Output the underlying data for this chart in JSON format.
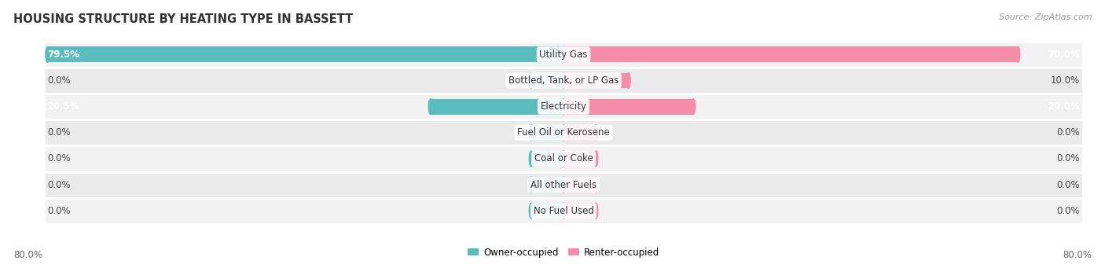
{
  "title": "HOUSING STRUCTURE BY HEATING TYPE IN BASSETT",
  "source": "Source: ZipAtlas.com",
  "categories": [
    "Utility Gas",
    "Bottled, Tank, or LP Gas",
    "Electricity",
    "Fuel Oil or Kerosene",
    "Coal or Coke",
    "All other Fuels",
    "No Fuel Used"
  ],
  "owner_values": [
    79.5,
    0.0,
    20.5,
    0.0,
    0.0,
    0.0,
    0.0
  ],
  "renter_values": [
    70.0,
    10.0,
    20.0,
    0.0,
    0.0,
    0.0,
    0.0
  ],
  "owner_color": "#5bbcbe",
  "renter_color": "#f48caa",
  "max_value": 80.0,
  "axis_label_left": "80.0%",
  "axis_label_right": "80.0%",
  "label_fontsize": 8.5,
  "title_fontsize": 10.5,
  "source_fontsize": 8,
  "zero_bar_owner": 5.0,
  "zero_bar_renter": 5.0
}
